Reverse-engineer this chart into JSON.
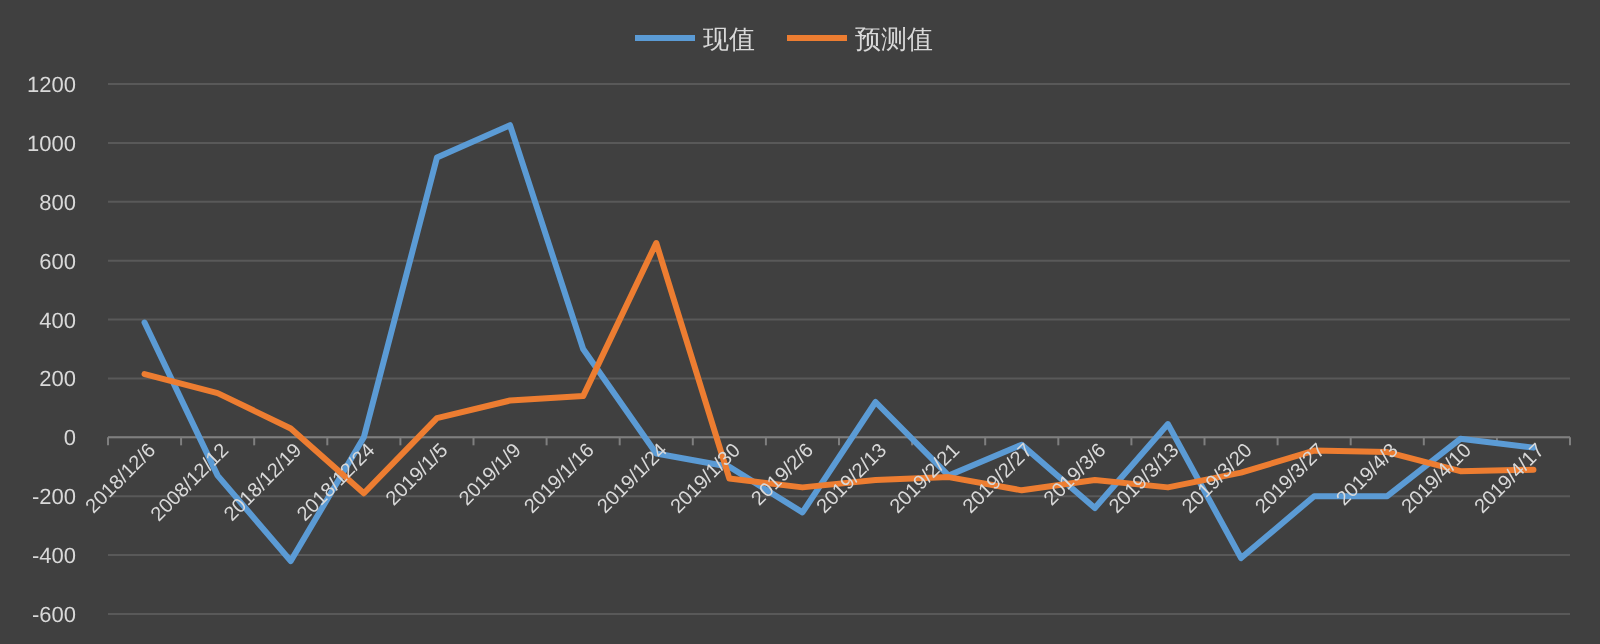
{
  "chart_data": {
    "type": "line",
    "categories": [
      "2018/12/6",
      "2008/12/12",
      "2018/12/19",
      "2018/12/24",
      "2019/1/5",
      "2019/1/9",
      "2019/1/16",
      "2019/1/24",
      "2019/1/30",
      "2019/2/6",
      "2019/2/13",
      "2019/2/21",
      "2019/2/27",
      "2019/3/6",
      "2019/3/13",
      "2019/3/20",
      "2019/3/27",
      "2019/4/3",
      "2019/4/10",
      "2019/4/17"
    ],
    "series": [
      {
        "name": "现值",
        "color": "#5b9bd5",
        "values": [
          390,
          -130,
          -420,
          0,
          950,
          1060,
          300,
          -55,
          -100,
          -255,
          120,
          -130,
          -25,
          -240,
          45,
          -410,
          -200,
          -200,
          -5,
          -35
        ]
      },
      {
        "name": "预测值",
        "color": "#ed7d31",
        "values": [
          215,
          150,
          30,
          -190,
          65,
          125,
          140,
          660,
          -140,
          -170,
          -145,
          -135,
          -180,
          -145,
          -170,
          -120,
          -45,
          -50,
          -115,
          -110
        ]
      }
    ],
    "ylim": [
      -600,
      1200
    ],
    "yticks": [
      -600,
      -400,
      -200,
      0,
      200,
      400,
      600,
      800,
      1000,
      1200
    ],
    "grid": "y",
    "legend": "top",
    "marker": "none",
    "line_style": "solid"
  }
}
